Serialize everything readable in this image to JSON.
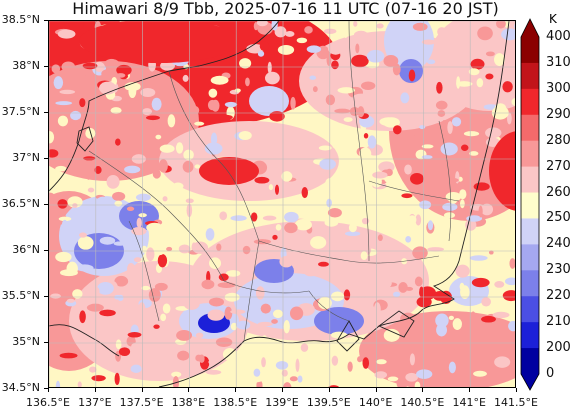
{
  "title": "Himawari 8/9 Tbb, 2025-07-16 11 UTC (07-16 20 JST)",
  "map": {
    "lon_range": [
      136.5,
      141.5
    ],
    "lat_range": [
      34.5,
      38.5
    ],
    "grid": true,
    "lon_ticks": [
      "136.5°E",
      "137°E",
      "137.5°E",
      "138°E",
      "138.5°E",
      "139°E",
      "139.5°E",
      "140°E",
      "140.5°E",
      "141°E",
      "141.5°E"
    ],
    "lat_ticks": [
      "38.5°N",
      "38°N",
      "37.5°N",
      "37°N",
      "36.5°N",
      "36°N",
      "35.5°N",
      "35°N",
      "34.5°N"
    ]
  },
  "colorbar": {
    "unit": "K",
    "labels": [
      "400",
      "310",
      "300",
      "290",
      "280",
      "270",
      "260",
      "250",
      "240",
      "230",
      "220",
      "210",
      "200",
      "0"
    ],
    "colors": [
      "#8b0000",
      "#c2141a",
      "#f0272c",
      "#f46a6b",
      "#f89898",
      "#fbc6c6",
      "#fffdcc",
      "#d0d3f7",
      "#a5a8f0",
      "#7c80ea",
      "#4b4fe4",
      "#1c20d8",
      "#0000a0"
    ]
  },
  "colors": {
    "hot": "#f0272c",
    "warm": "#f89898",
    "mild": "#fbc6c6",
    "neutral": "#fff7c4",
    "cool": "#d0d3f7",
    "cold": "#7c80ea",
    "coldest": "#1c20d8"
  }
}
